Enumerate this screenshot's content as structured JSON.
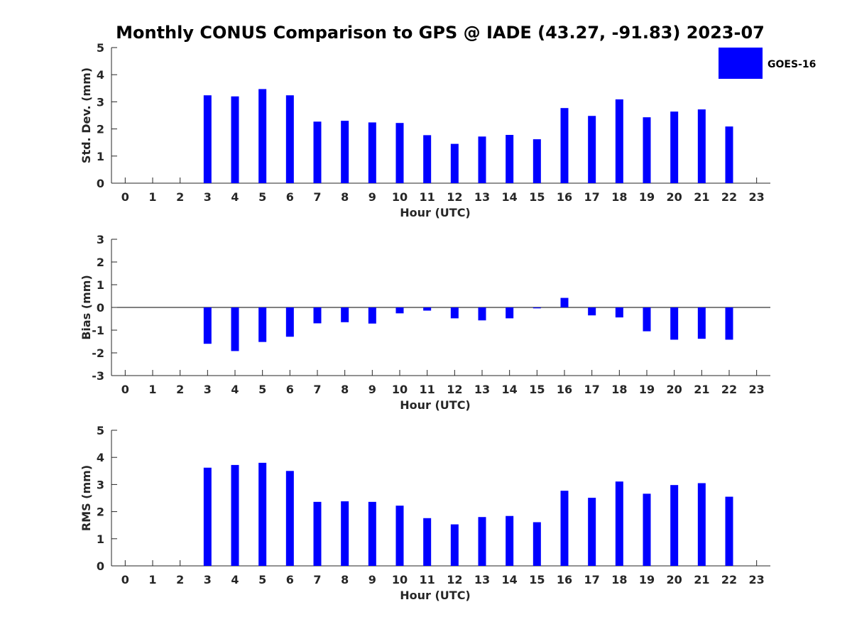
{
  "figure_title": "Monthly CONUS Comparison to GPS @ IADE (43.27, -91.83) 2023-07",
  "colors": {
    "bar": "#0000ff",
    "axis": "#262626",
    "text": "#262626"
  },
  "legend": {
    "label": "GOES-16",
    "color": "#0000ff",
    "placement": "top-right"
  },
  "chart_data": [
    {
      "type": "bar",
      "title": "",
      "xlabel": "Hour (UTC)",
      "ylabel": "Std. Dev. (mm)",
      "xlim": [
        -0.5,
        23.5
      ],
      "ylim": [
        0,
        5
      ],
      "yticks": [
        0,
        1,
        2,
        3,
        4,
        5
      ],
      "grid": false,
      "categories": [
        0,
        1,
        2,
        3,
        4,
        5,
        6,
        7,
        8,
        9,
        10,
        11,
        12,
        13,
        14,
        15,
        16,
        17,
        18,
        19,
        20,
        21,
        22,
        23
      ],
      "series": [
        {
          "name": "GOES-16",
          "values": [
            null,
            null,
            null,
            3.24,
            3.2,
            3.47,
            3.24,
            2.27,
            2.3,
            2.24,
            2.22,
            1.77,
            1.45,
            1.72,
            1.78,
            1.62,
            2.77,
            2.48,
            3.09,
            2.43,
            2.64,
            2.72,
            2.09,
            null
          ]
        }
      ]
    },
    {
      "type": "bar",
      "title": "",
      "xlabel": "Hour (UTC)",
      "ylabel": "Bias (mm)",
      "xlim": [
        -0.5,
        23.5
      ],
      "ylim": [
        -3,
        3
      ],
      "yticks": [
        -3,
        -2,
        -1,
        0,
        1,
        2,
        3
      ],
      "grid": false,
      "zero_line": true,
      "categories": [
        0,
        1,
        2,
        3,
        4,
        5,
        6,
        7,
        8,
        9,
        10,
        11,
        12,
        13,
        14,
        15,
        16,
        17,
        18,
        19,
        20,
        21,
        22,
        23
      ],
      "series": [
        {
          "name": "GOES-16",
          "values": [
            null,
            null,
            null,
            -1.6,
            -1.92,
            -1.52,
            -1.29,
            -0.7,
            -0.65,
            -0.71,
            -0.26,
            -0.14,
            -0.48,
            -0.57,
            -0.48,
            -0.04,
            0.42,
            -0.35,
            -0.44,
            -1.05,
            -1.42,
            -1.38,
            -1.42,
            null
          ]
        }
      ]
    },
    {
      "type": "bar",
      "title": "",
      "xlabel": "Hour (UTC)",
      "ylabel": "RMS (mm)",
      "xlim": [
        -0.5,
        23.5
      ],
      "ylim": [
        0,
        5
      ],
      "yticks": [
        0,
        1,
        2,
        3,
        4,
        5
      ],
      "grid": false,
      "categories": [
        0,
        1,
        2,
        3,
        4,
        5,
        6,
        7,
        8,
        9,
        10,
        11,
        12,
        13,
        14,
        15,
        16,
        17,
        18,
        19,
        20,
        21,
        22,
        23
      ],
      "series": [
        {
          "name": "GOES-16",
          "values": [
            null,
            null,
            null,
            3.62,
            3.72,
            3.8,
            3.5,
            2.36,
            2.38,
            2.36,
            2.22,
            1.76,
            1.53,
            1.8,
            1.84,
            1.61,
            2.77,
            2.51,
            3.11,
            2.66,
            2.98,
            3.05,
            2.55,
            null
          ]
        }
      ]
    }
  ]
}
